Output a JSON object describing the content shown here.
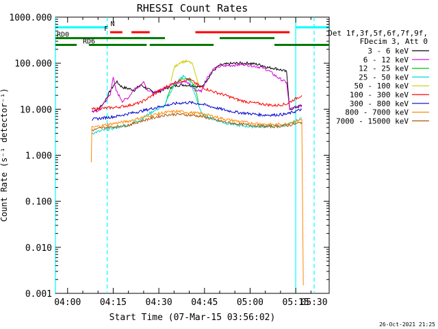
{
  "chart_data": {
    "type": "line",
    "title": "RHESSI Count Rates",
    "xlabel": "Start Time (07-Mar-15 03:56:02)",
    "ylabel": "Count Rate (s⁻¹ detector⁻¹)",
    "y_scale": "log",
    "ylim": [
      0.001,
      1000
    ],
    "xlim_minutes_after_0400": [
      -4,
      86
    ],
    "x_ticks": [
      {
        "t": 0,
        "label": "04:00"
      },
      {
        "t": 15,
        "label": "04:15"
      },
      {
        "t": 30,
        "label": "04:30"
      },
      {
        "t": 45,
        "label": "04:45"
      },
      {
        "t": 60,
        "label": "05:00"
      },
      {
        "t": 75,
        "label": "05:15"
      },
      {
        "t": 90,
        "label": "05:30"
      }
    ],
    "y_ticks": [
      {
        "v": 0.001,
        "label": "0.001"
      },
      {
        "v": 0.01,
        "label": "0.010"
      },
      {
        "v": 0.1,
        "label": "0.100"
      },
      {
        "v": 1,
        "label": "1.000"
      },
      {
        "v": 10,
        "label": "10.000"
      },
      {
        "v": 100,
        "label": "100.000"
      },
      {
        "v": 1000,
        "label": "1000.000"
      }
    ],
    "legend_header": [
      "Det 1f,3f,5f,6f,7f,9f,",
      "FDecim 3, Att 0"
    ],
    "series": [
      {
        "name": "3 - 6 keV",
        "color": "#000000",
        "points": [
          [
            8,
            9
          ],
          [
            10,
            10
          ],
          [
            12,
            14
          ],
          [
            14,
            25
          ],
          [
            16,
            40
          ],
          [
            18,
            30
          ],
          [
            20,
            28
          ],
          [
            22,
            26
          ],
          [
            24,
            34
          ],
          [
            26,
            28
          ],
          [
            28,
            24
          ],
          [
            30,
            24
          ],
          [
            32,
            28
          ],
          [
            34,
            30
          ],
          [
            36,
            33
          ],
          [
            38,
            34
          ],
          [
            40,
            33
          ],
          [
            42,
            32
          ],
          [
            44,
            30
          ],
          [
            46,
            45
          ],
          [
            48,
            70
          ],
          [
            50,
            90
          ],
          [
            52,
            95
          ],
          [
            54,
            98
          ],
          [
            56,
            100
          ],
          [
            58,
            100
          ],
          [
            60,
            100
          ],
          [
            62,
            95
          ],
          [
            64,
            90
          ],
          [
            66,
            80
          ],
          [
            68,
            78
          ],
          [
            70,
            72
          ],
          [
            72,
            65
          ],
          [
            73,
            10
          ],
          [
            75,
            11
          ],
          [
            77,
            12
          ]
        ]
      },
      {
        "name": "6 - 12 keV",
        "color": "#d400d4",
        "points": [
          [
            8,
            9
          ],
          [
            10,
            9
          ],
          [
            12,
            14
          ],
          [
            14,
            20
          ],
          [
            15,
            50
          ],
          [
            16,
            25
          ],
          [
            18,
            15
          ],
          [
            20,
            18
          ],
          [
            22,
            28
          ],
          [
            24,
            33
          ],
          [
            25,
            40
          ],
          [
            26,
            28
          ],
          [
            28,
            22
          ],
          [
            30,
            25
          ],
          [
            32,
            28
          ],
          [
            34,
            35
          ],
          [
            36,
            38
          ],
          [
            38,
            40
          ],
          [
            40,
            36
          ],
          [
            42,
            26
          ],
          [
            44,
            25
          ],
          [
            46,
            50
          ],
          [
            48,
            75
          ],
          [
            50,
            85
          ],
          [
            52,
            88
          ],
          [
            54,
            90
          ],
          [
            56,
            92
          ],
          [
            58,
            95
          ],
          [
            60,
            90
          ],
          [
            62,
            85
          ],
          [
            64,
            80
          ],
          [
            66,
            70
          ],
          [
            68,
            55
          ],
          [
            70,
            45
          ],
          [
            72,
            38
          ],
          [
            73,
            10
          ],
          [
            75,
            11
          ],
          [
            77,
            12
          ]
        ]
      },
      {
        "name": "12 - 25 keV",
        "color": "#00cc00",
        "points": [
          [
            32,
            12
          ],
          [
            33,
            20
          ],
          [
            34,
            30
          ],
          [
            36,
            40
          ],
          [
            38,
            48
          ],
          [
            40,
            45
          ],
          [
            42,
            30
          ],
          [
            43,
            14
          ]
        ]
      },
      {
        "name": "25 - 50 keV",
        "color": "#00d8d8",
        "points": [
          [
            8,
            3
          ],
          [
            12,
            3.5
          ],
          [
            16,
            4
          ],
          [
            20,
            4.5
          ],
          [
            24,
            6
          ],
          [
            28,
            9
          ],
          [
            32,
            12
          ],
          [
            34,
            25
          ],
          [
            36,
            40
          ],
          [
            38,
            52
          ],
          [
            40,
            42
          ],
          [
            42,
            20
          ],
          [
            44,
            8
          ],
          [
            48,
            6
          ],
          [
            52,
            5
          ],
          [
            56,
            4.5
          ],
          [
            60,
            4.2
          ],
          [
            64,
            4.2
          ],
          [
            68,
            4.3
          ],
          [
            72,
            4.5
          ],
          [
            75,
            5.5
          ],
          [
            77,
            6.5
          ]
        ]
      },
      {
        "name": "50 - 100 keV",
        "color": "#cccc00",
        "points": [
          [
            34,
            40
          ],
          [
            35,
            80
          ],
          [
            37,
            105
          ],
          [
            39,
            110
          ],
          [
            41,
            100
          ],
          [
            42,
            60
          ],
          [
            43,
            35
          ]
        ]
      },
      {
        "name": "100 - 300 keV",
        "color": "#ff0000",
        "points": [
          [
            8,
            10
          ],
          [
            12,
            10.5
          ],
          [
            16,
            11
          ],
          [
            20,
            12
          ],
          [
            24,
            14
          ],
          [
            28,
            20
          ],
          [
            32,
            30
          ],
          [
            36,
            40
          ],
          [
            40,
            45
          ],
          [
            44,
            30
          ],
          [
            48,
            24
          ],
          [
            52,
            20
          ],
          [
            56,
            16
          ],
          [
            60,
            14
          ],
          [
            64,
            13
          ],
          [
            68,
            12
          ],
          [
            72,
            13
          ],
          [
            75,
            17
          ],
          [
            77,
            20
          ]
        ]
      },
      {
        "name": "300 - 800 keV",
        "color": "#0000cc",
        "points": [
          [
            8,
            6
          ],
          [
            12,
            6.5
          ],
          [
            16,
            7
          ],
          [
            20,
            8
          ],
          [
            24,
            9
          ],
          [
            28,
            10.5
          ],
          [
            32,
            12
          ],
          [
            36,
            13.5
          ],
          [
            40,
            14
          ],
          [
            44,
            13
          ],
          [
            48,
            11
          ],
          [
            52,
            9.5
          ],
          [
            56,
            8.5
          ],
          [
            60,
            8
          ],
          [
            64,
            7.5
          ],
          [
            68,
            7.5
          ],
          [
            72,
            7.8
          ],
          [
            75,
            9
          ],
          [
            77,
            10
          ]
        ]
      },
      {
        "name": "800 - 7000 keV",
        "color": "#ff8800",
        "points": [
          [
            7.8,
            0.7
          ],
          [
            8,
            4
          ],
          [
            12,
            4.5
          ],
          [
            16,
            5
          ],
          [
            20,
            5.5
          ],
          [
            24,
            6.5
          ],
          [
            28,
            7.5
          ],
          [
            32,
            8.5
          ],
          [
            36,
            9
          ],
          [
            40,
            8.5
          ],
          [
            44,
            8
          ],
          [
            48,
            7
          ],
          [
            52,
            6
          ],
          [
            56,
            5.5
          ],
          [
            60,
            5
          ],
          [
            64,
            4.8
          ],
          [
            68,
            4.6
          ],
          [
            72,
            4.8
          ],
          [
            75,
            5.5
          ],
          [
            77,
            6
          ],
          [
            77.5,
            0.0015
          ]
        ]
      },
      {
        "name": "7000 - 15000 keV",
        "color": "#aa5500",
        "points": [
          [
            8,
            3.5
          ],
          [
            12,
            4
          ],
          [
            16,
            4.2
          ],
          [
            20,
            4.5
          ],
          [
            24,
            5.5
          ],
          [
            28,
            6.5
          ],
          [
            32,
            7.5
          ],
          [
            36,
            7.8
          ],
          [
            40,
            7.5
          ],
          [
            44,
            7
          ],
          [
            48,
            6
          ],
          [
            52,
            5.2
          ],
          [
            56,
            4.8
          ],
          [
            60,
            4.5
          ],
          [
            64,
            4.3
          ],
          [
            68,
            4.2
          ],
          [
            72,
            4.4
          ],
          [
            75,
            4.8
          ],
          [
            77,
            5.2
          ]
        ]
      }
    ],
    "state_bars": [
      {
        "label": "N",
        "color": "#00ffff",
        "y_value": 600,
        "segments": [
          [
            -4,
            13
          ],
          [
            75,
            86
          ]
        ]
      },
      {
        "label": "F",
        "color": "#ff0000",
        "y_value": 470,
        "segments": [
          [
            14,
            18
          ],
          [
            21,
            27
          ],
          [
            42,
            73
          ]
        ]
      },
      {
        "label": "RD0",
        "color": "#007700",
        "y_value": 350,
        "segments": [
          [
            -4,
            32
          ],
          [
            50,
            68
          ]
        ]
      },
      {
        "label": "RD6",
        "color": "#007700",
        "y_value": 250,
        "segments": [
          [
            -4,
            3
          ],
          [
            7,
            26
          ],
          [
            27,
            48
          ],
          [
            68,
            86
          ]
        ]
      }
    ],
    "vlines": [
      {
        "t": 13,
        "color": "#00ffff",
        "style": "dashed"
      },
      {
        "t": 75,
        "color": "#00ffff",
        "style": "solid"
      },
      {
        "t": 90,
        "color": "#00ffff",
        "style": "dashed"
      },
      {
        "t": -4,
        "color": "#00ffff",
        "style": "solid"
      }
    ]
  },
  "footer": {
    "timestamp": "26-Oct-2021 21:25"
  }
}
